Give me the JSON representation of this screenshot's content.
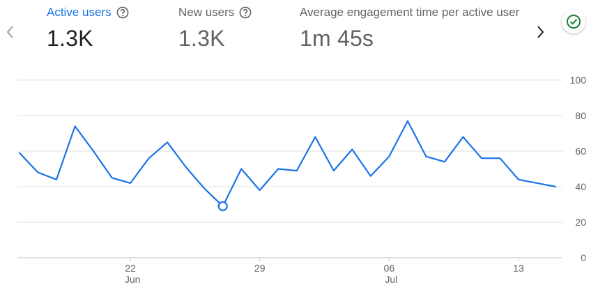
{
  "nav": {
    "prev_icon": "chevron-left-icon",
    "next_icon": "chevron-right-icon"
  },
  "metrics": [
    {
      "label": "Active users",
      "value": "1.3K",
      "help_icon": "help-circle-icon",
      "selected": true
    },
    {
      "label": "New users",
      "value": "1.3K",
      "help_icon": "help-circle-icon",
      "selected": false
    },
    {
      "label": "Average engagement time per active user",
      "value": "1m 45s",
      "selected": false
    }
  ],
  "status": {
    "icon": "check-circle-icon",
    "color": "#188038"
  },
  "colors": {
    "line": "#1a73e8",
    "grid": "#e0e0e0",
    "active_label": "#1a73e8"
  },
  "chart_data": {
    "type": "line",
    "series": [
      {
        "name": "Active users",
        "values": [
          59,
          48,
          44,
          74,
          60,
          45,
          42,
          56,
          65,
          51,
          39,
          29,
          50,
          38,
          50,
          49,
          68,
          49,
          61,
          46,
          57,
          77,
          57,
          54,
          68,
          56,
          56,
          44,
          42,
          40
        ]
      }
    ],
    "highlight_index": 11,
    "ylim": [
      0,
      100
    ],
    "y_ticks": [
      "0",
      "20",
      "40",
      "60",
      "80",
      "100"
    ],
    "x_ticks": [
      {
        "index": 6,
        "label": "22",
        "month": "Jun"
      },
      {
        "index": 13,
        "label": "29",
        "month": ""
      },
      {
        "index": 20,
        "label": "06",
        "month": "Jul"
      },
      {
        "index": 27,
        "label": "13",
        "month": ""
      }
    ]
  }
}
